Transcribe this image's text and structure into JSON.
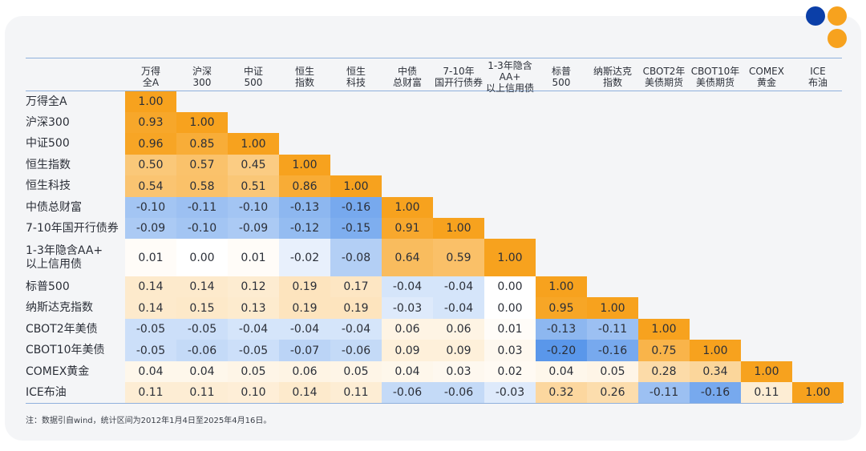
{
  "colors": {
    "positive_strong": "#f7a21e",
    "negative_strong": "#5a97ea",
    "neutral": "#ffffff",
    "card_background": "#f4f5f7"
  },
  "note": "注：数据引自wind，统计区间为2012年1月4日至2025年4月16日。",
  "chart_data": {
    "type": "heatmap",
    "title": "",
    "columns": [
      "万得\n全A",
      "沪深\n300",
      "中证\n500",
      "恒生\n指数",
      "恒生\n科技",
      "中债\n总财富",
      "7-10年\n国开行债券",
      "1-3年隐含AA+\n以上信用债",
      "标普\n500",
      "纳斯达克\n指数",
      "CBOT2年\n美债期货",
      "CBOT10年\n美债期货",
      "COMEX\n黄金",
      "ICE\n布油"
    ],
    "rows": [
      "万得全A",
      "沪深300",
      "中证500",
      "恒生指数",
      "恒生科技",
      "中债总财富",
      "7-10年国开行债券",
      "1-3年隐含AA+\n以上信用债",
      "标普500",
      "纳斯达克指数",
      "CBOT2年美债",
      "CBOT10年美债",
      "COMEX黄金",
      "ICE布油"
    ],
    "values": [
      [
        "1.00"
      ],
      [
        "0.93",
        "1.00"
      ],
      [
        "0.96",
        "0.85",
        "1.00"
      ],
      [
        "0.50",
        "0.57",
        "0.45",
        "1.00"
      ],
      [
        "0.54",
        "0.58",
        "0.51",
        "0.86",
        "1.00"
      ],
      [
        "-0.10",
        "-0.11",
        "-0.10",
        "-0.13",
        "-0.16",
        "1.00"
      ],
      [
        "-0.09",
        "-0.10",
        "-0.09",
        "-0.12",
        "-0.15",
        "0.91",
        "1.00"
      ],
      [
        "0.01",
        "0.00",
        "0.01",
        "-0.02",
        "-0.08",
        "0.64",
        "0.59",
        "1.00"
      ],
      [
        "0.14",
        "0.14",
        "0.12",
        "0.19",
        "0.17",
        "-0.04",
        "-0.04",
        "0.00",
        "1.00"
      ],
      [
        "0.14",
        "0.15",
        "0.13",
        "0.19",
        "0.19",
        "-0.03",
        "-0.04",
        "0.00",
        "0.95",
        "1.00"
      ],
      [
        "-0.05",
        "-0.05",
        "-0.04",
        "-0.04",
        "-0.04",
        "0.06",
        "0.06",
        "0.01",
        "-0.13",
        "-0.11",
        "1.00"
      ],
      [
        "-0.05",
        "-0.06",
        "-0.05",
        "-0.07",
        "-0.06",
        "0.09",
        "0.09",
        "0.03",
        "-0.20",
        "-0.16",
        "0.75",
        "1.00"
      ],
      [
        "0.04",
        "0.04",
        "0.05",
        "0.06",
        "0.05",
        "0.04",
        "0.03",
        "0.02",
        "0.04",
        "0.05",
        "0.28",
        "0.34",
        "1.00"
      ],
      [
        "0.11",
        "0.11",
        "0.10",
        "0.14",
        "0.11",
        "-0.06",
        "-0.06",
        "-0.03",
        "0.32",
        "0.26",
        "-0.11",
        "-0.16",
        "0.11",
        "1.00"
      ]
    ],
    "scale": {
      "min": -0.2,
      "max": 1.0
    }
  }
}
